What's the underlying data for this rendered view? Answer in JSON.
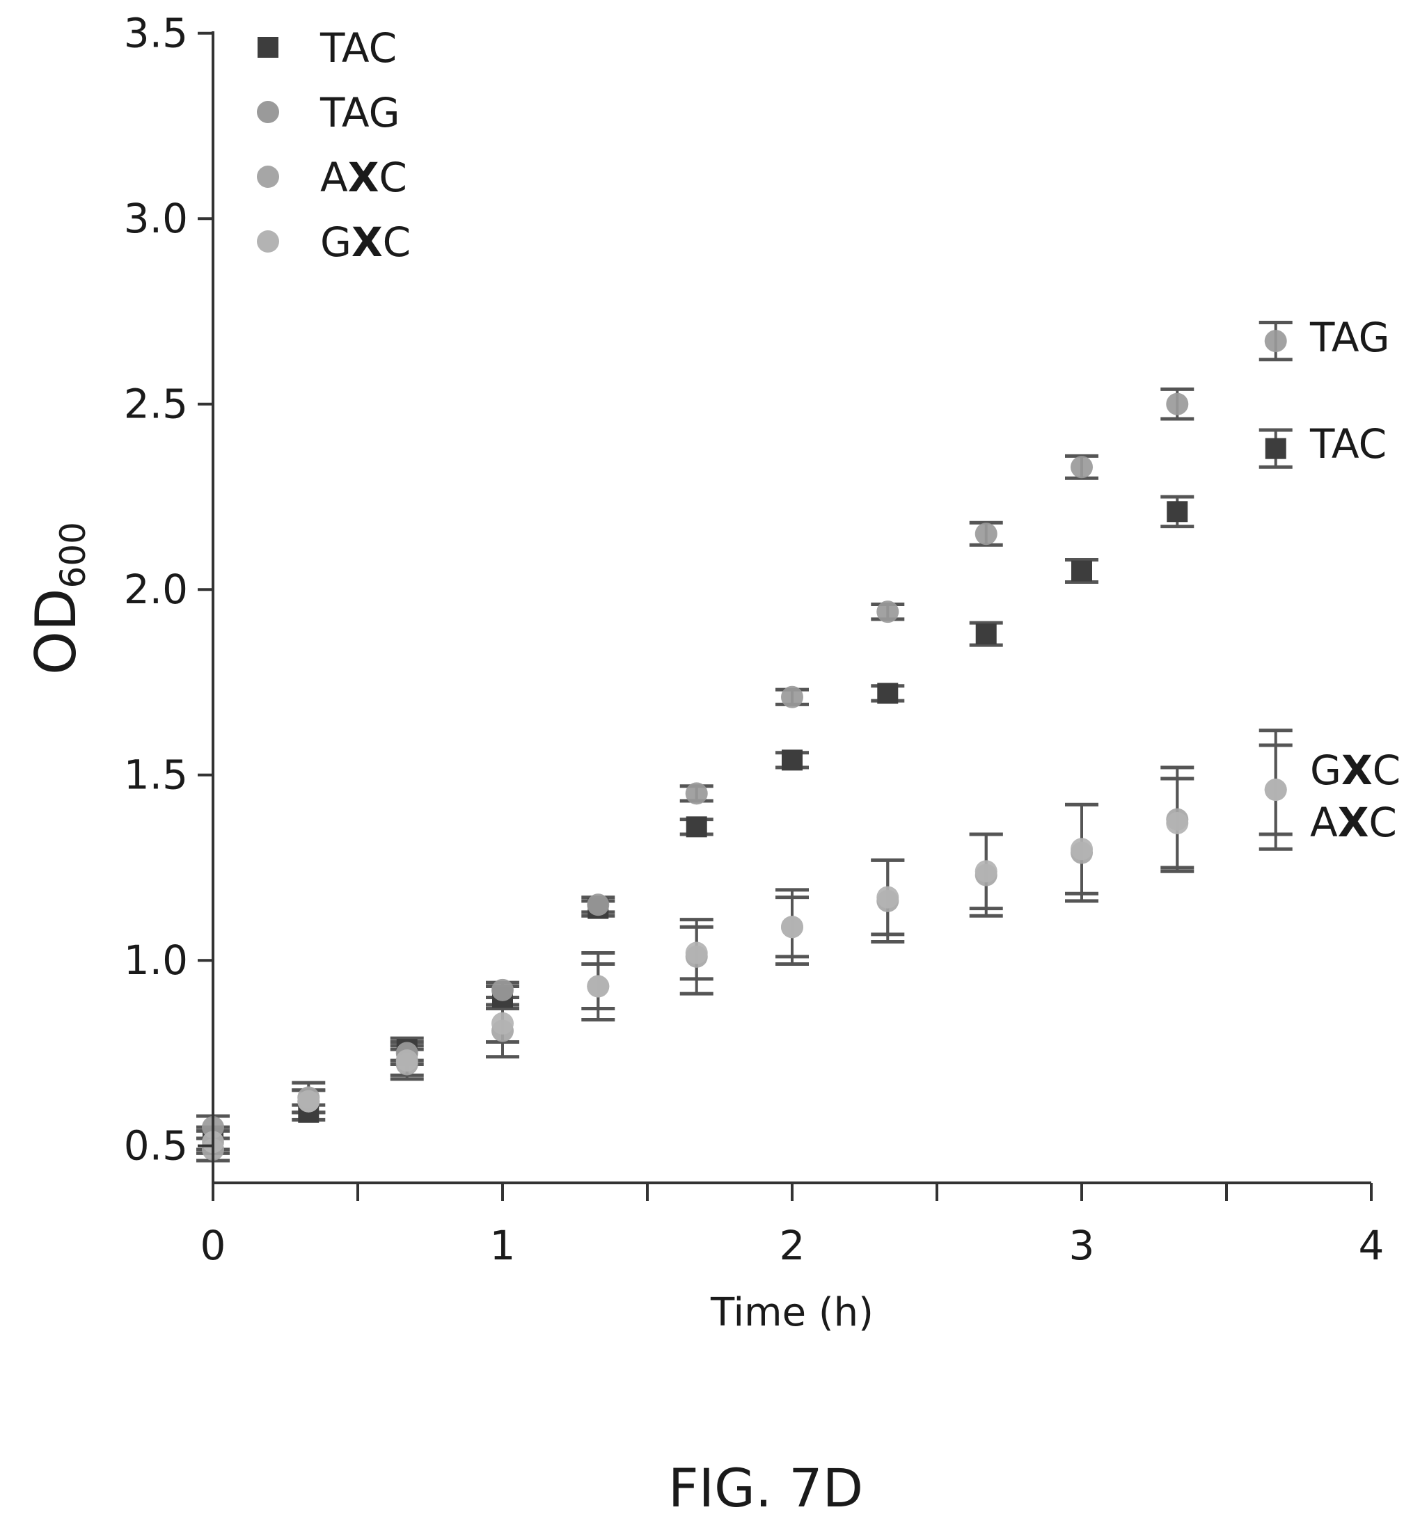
{
  "chart_data": {
    "type": "scatter",
    "xlabel": "Time (h)",
    "ylabel": {
      "main": "OD",
      "sub": "600"
    },
    "xlim": [
      0,
      4
    ],
    "ylim": [
      0.4,
      3.5
    ],
    "x_ticks": [
      "0",
      "1",
      "2",
      "3",
      "4"
    ],
    "y_ticks": [
      "0.5",
      "1.0",
      "1.5",
      "2.0",
      "2.5",
      "3.0",
      "3.5"
    ],
    "legend_position": "top-left",
    "grid": false,
    "error_bars": true,
    "series": [
      {
        "name": "TAC",
        "name_parts": [
          {
            "t": "TAC",
            "b": false
          }
        ],
        "color": "#3d3d3d",
        "marker": "square",
        "points": [
          {
            "x": 0.0,
            "y": 0.52,
            "err": 0.03
          },
          {
            "x": 0.33,
            "y": 0.59,
            "err": 0.02
          },
          {
            "x": 0.67,
            "y": 0.76,
            "err": 0.03
          },
          {
            "x": 1.0,
            "y": 0.9,
            "err": 0.03
          },
          {
            "x": 1.33,
            "y": 1.14,
            "err": 0.02
          },
          {
            "x": 1.67,
            "y": 1.36,
            "err": 0.02
          },
          {
            "x": 2.0,
            "y": 1.54,
            "err": 0.02
          },
          {
            "x": 2.33,
            "y": 1.72,
            "err": 0.02
          },
          {
            "x": 2.67,
            "y": 1.88,
            "err": 0.03
          },
          {
            "x": 3.0,
            "y": 2.05,
            "err": 0.03
          },
          {
            "x": 3.33,
            "y": 2.21,
            "err": 0.04
          },
          {
            "x": 3.67,
            "y": 2.38,
            "err": 0.05
          }
        ]
      },
      {
        "name": "TAG",
        "name_parts": [
          {
            "t": "TAG",
            "b": false
          }
        ],
        "color": "#9a9a9a",
        "marker": "circle",
        "points": [
          {
            "x": 0.0,
            "y": 0.55,
            "err": 0.03
          },
          {
            "x": 0.33,
            "y": 0.62,
            "err": 0.03
          },
          {
            "x": 0.67,
            "y": 0.75,
            "err": 0.03
          },
          {
            "x": 1.0,
            "y": 0.92,
            "err": 0.02
          },
          {
            "x": 1.33,
            "y": 1.15,
            "err": 0.02
          },
          {
            "x": 1.67,
            "y": 1.45,
            "err": 0.02
          },
          {
            "x": 2.0,
            "y": 1.71,
            "err": 0.02
          },
          {
            "x": 2.33,
            "y": 1.94,
            "err": 0.02
          },
          {
            "x": 2.67,
            "y": 2.15,
            "err": 0.03
          },
          {
            "x": 3.0,
            "y": 2.33,
            "err": 0.03
          },
          {
            "x": 3.33,
            "y": 2.5,
            "err": 0.04
          },
          {
            "x": 3.67,
            "y": 2.67,
            "err": 0.05
          }
        ]
      },
      {
        "name": "AXC",
        "name_parts": [
          {
            "t": "A",
            "b": false
          },
          {
            "t": "X",
            "b": true
          },
          {
            "t": "C",
            "b": false
          }
        ],
        "color": "#a6a6a6",
        "marker": "circle",
        "points": [
          {
            "x": 0.0,
            "y": 0.49,
            "err": 0.03
          },
          {
            "x": 0.33,
            "y": 0.63,
            "err": 0.04
          },
          {
            "x": 0.67,
            "y": 0.72,
            "err": 0.04
          },
          {
            "x": 1.0,
            "y": 0.81,
            "err": 0.07
          },
          {
            "x": 1.33,
            "y": 0.93,
            "err": 0.09
          },
          {
            "x": 1.67,
            "y": 1.01,
            "err": 0.1
          },
          {
            "x": 2.0,
            "y": 1.09,
            "err": 0.1
          },
          {
            "x": 2.33,
            "y": 1.16,
            "err": 0.11
          },
          {
            "x": 2.67,
            "y": 1.23,
            "err": 0.11
          },
          {
            "x": 3.0,
            "y": 1.29,
            "err": 0.13
          },
          {
            "x": 3.33,
            "y": 1.38,
            "err": 0.14
          },
          {
            "x": 3.67,
            "y": 1.46,
            "err": 0.16
          }
        ]
      },
      {
        "name": "GXC",
        "name_parts": [
          {
            "t": "G",
            "b": false
          },
          {
            "t": "X",
            "b": true
          },
          {
            "t": "C",
            "b": false
          }
        ],
        "color": "#b3b3b3",
        "marker": "circle",
        "points": [
          {
            "x": 0.0,
            "y": 0.51,
            "err": 0.03
          },
          {
            "x": 0.33,
            "y": 0.62,
            "err": 0.03
          },
          {
            "x": 0.67,
            "y": 0.73,
            "err": 0.04
          },
          {
            "x": 1.0,
            "y": 0.83,
            "err": 0.05
          },
          {
            "x": 1.33,
            "y": 0.93,
            "err": 0.06
          },
          {
            "x": 1.67,
            "y": 1.02,
            "err": 0.07
          },
          {
            "x": 2.0,
            "y": 1.09,
            "err": 0.08
          },
          {
            "x": 2.33,
            "y": 1.17,
            "err": 0.1
          },
          {
            "x": 2.67,
            "y": 1.24,
            "err": 0.1
          },
          {
            "x": 3.0,
            "y": 1.3,
            "err": 0.12
          },
          {
            "x": 3.33,
            "y": 1.37,
            "err": 0.12
          },
          {
            "x": 3.67,
            "y": 1.46,
            "err": 0.12
          }
        ]
      }
    ],
    "end_labels": [
      {
        "series": "TAG",
        "parts": [
          {
            "t": "TAG",
            "b": false
          }
        ]
      },
      {
        "series": "TAC",
        "parts": [
          {
            "t": "TAC",
            "b": false
          }
        ]
      },
      {
        "series": "GXC",
        "parts": [
          {
            "t": "G",
            "b": false
          },
          {
            "t": "X",
            "b": true
          },
          {
            "t": "C",
            "b": false
          }
        ]
      },
      {
        "series": "AXC",
        "parts": [
          {
            "t": "A",
            "b": false
          },
          {
            "t": "X",
            "b": true
          },
          {
            "t": "C",
            "b": false
          }
        ]
      }
    ]
  },
  "caption": "FIG. 7D"
}
